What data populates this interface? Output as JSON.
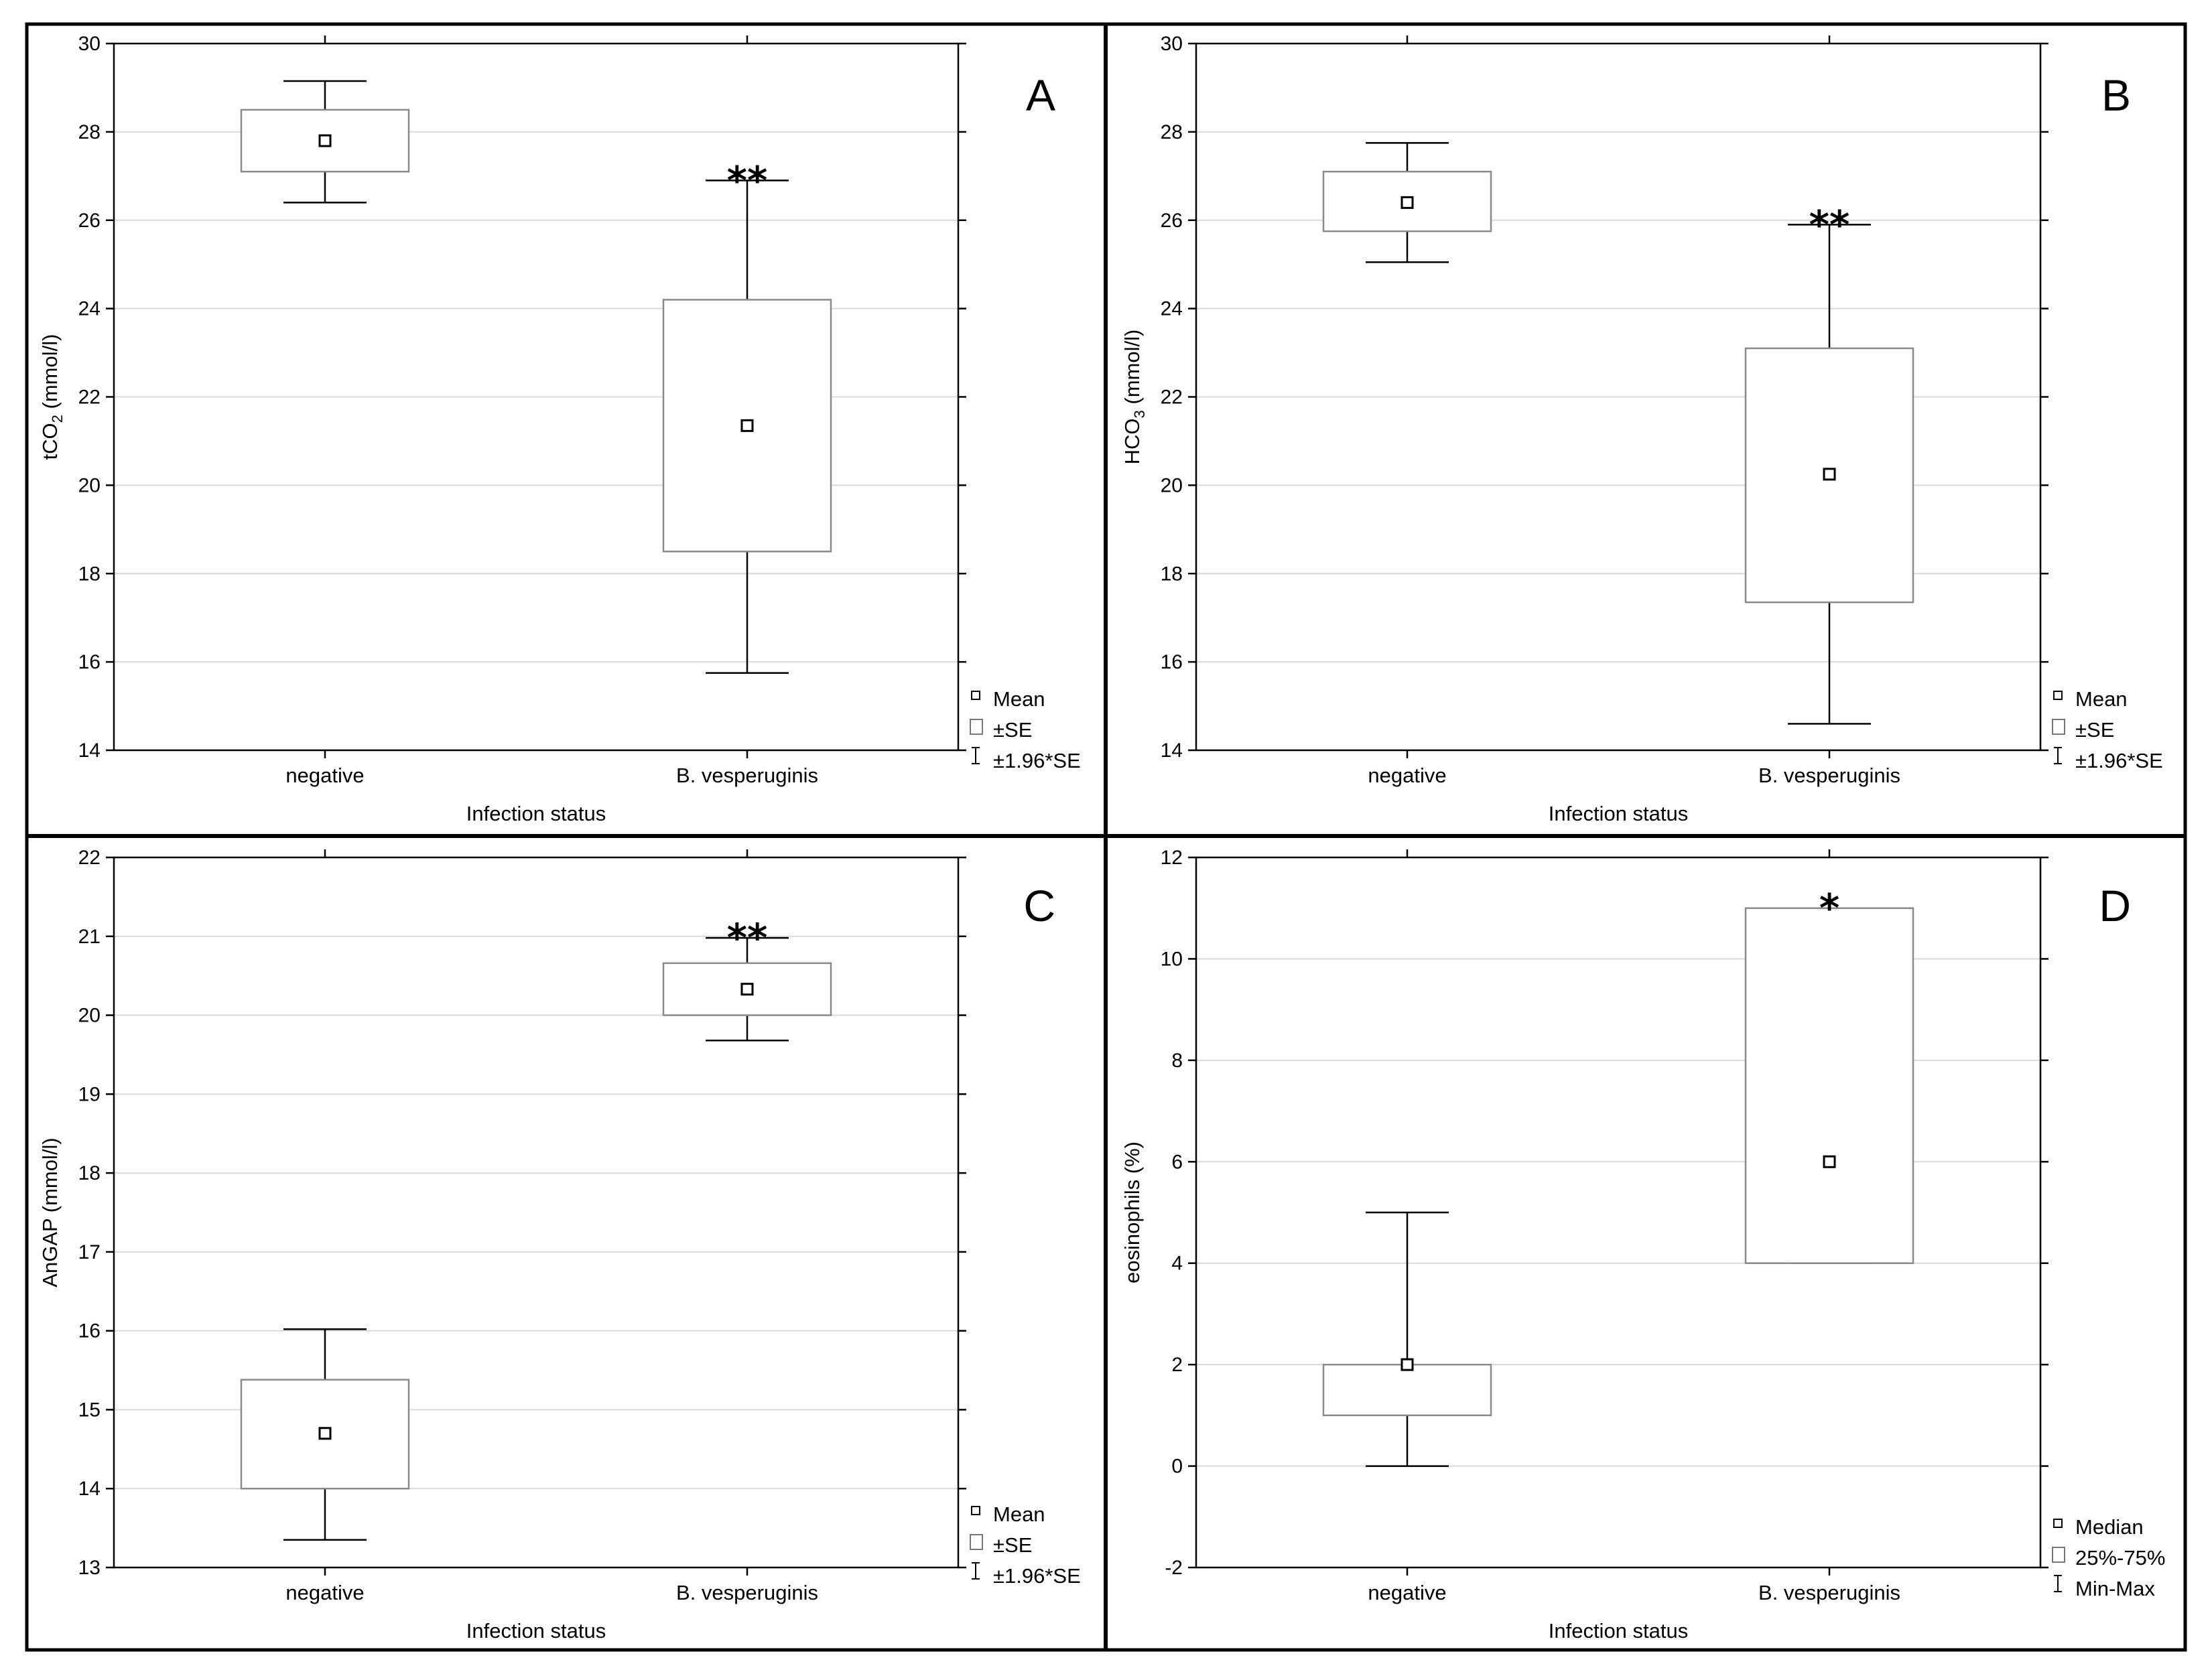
{
  "chart_data": [
    {
      "type": "box",
      "panel": "A",
      "ylabel": "tCO",
      "ylabel_sub": "2",
      "ylabel_unit": " (mmol/l)",
      "xlabel": "Infection status",
      "categories": [
        "negative",
        "B. vesperuginis"
      ],
      "ylim": [
        14,
        30
      ],
      "yticks": [
        14,
        16,
        18,
        20,
        22,
        24,
        26,
        28,
        30
      ],
      "series": [
        {
          "name": "negative",
          "center": 27.8,
          "box_low": 27.1,
          "box_high": 28.5,
          "whisker_low": 26.4,
          "whisker_high": 29.15,
          "significance": ""
        },
        {
          "name": "B. vesperuginis",
          "center": 21.35,
          "box_low": 18.5,
          "box_high": 24.2,
          "whisker_low": 15.75,
          "whisker_high": 26.9,
          "significance": "**"
        }
      ],
      "legend": [
        "Mean",
        "±SE",
        "±1.96*SE"
      ]
    },
    {
      "type": "box",
      "panel": "B",
      "ylabel": "HCO",
      "ylabel_sub": "3",
      "ylabel_unit": " (mmol/l)",
      "xlabel": "Infection status",
      "categories": [
        "negative",
        "B. vesperuginis"
      ],
      "ylim": [
        14,
        30
      ],
      "yticks": [
        14,
        16,
        18,
        20,
        22,
        24,
        26,
        28,
        30
      ],
      "series": [
        {
          "name": "negative",
          "center": 26.4,
          "box_low": 25.75,
          "box_high": 27.1,
          "whisker_low": 25.05,
          "whisker_high": 27.75,
          "significance": ""
        },
        {
          "name": "B. vesperuginis",
          "center": 20.25,
          "box_low": 17.35,
          "box_high": 23.1,
          "whisker_low": 14.6,
          "whisker_high": 25.9,
          "significance": "**"
        }
      ],
      "legend": [
        "Mean",
        "±SE",
        "±1.96*SE"
      ]
    },
    {
      "type": "box",
      "panel": "C",
      "ylabel": "AnGAP",
      "ylabel_sub": "",
      "ylabel_unit": " (mmol/l)",
      "xlabel": "Infection status",
      "categories": [
        "negative",
        "B. vesperuginis"
      ],
      "ylim": [
        13,
        22
      ],
      "yticks": [
        13,
        14,
        15,
        16,
        17,
        18,
        19,
        20,
        21,
        22
      ],
      "series": [
        {
          "name": "negative",
          "center": 14.7,
          "box_low": 14.0,
          "box_high": 15.38,
          "whisker_low": 13.35,
          "whisker_high": 16.02,
          "significance": ""
        },
        {
          "name": "B. vesperuginis",
          "center": 20.33,
          "box_low": 20.0,
          "box_high": 20.66,
          "whisker_low": 19.68,
          "whisker_high": 20.98,
          "significance": "**"
        }
      ],
      "legend": [
        "Mean",
        "±SE",
        "±1.96*SE"
      ]
    },
    {
      "type": "box",
      "panel": "D",
      "ylabel": "eosinophils",
      "ylabel_sub": "",
      "ylabel_unit": " (%)",
      "xlabel": "Infection status",
      "categories": [
        "negative",
        "B. vesperuginis"
      ],
      "ylim": [
        -2,
        12
      ],
      "yticks": [
        -2,
        0,
        2,
        4,
        6,
        8,
        10,
        12
      ],
      "series": [
        {
          "name": "negative",
          "center": 2,
          "box_low": 1,
          "box_high": 2,
          "whisker_low": 0,
          "whisker_high": 5,
          "significance": ""
        },
        {
          "name": "B. vesperuginis",
          "center": 6,
          "box_low": 4,
          "box_high": 11,
          "whisker_low": 4,
          "whisker_high": 11,
          "significance": "*"
        }
      ],
      "legend": [
        "Median",
        "25%-75%",
        "Min-Max"
      ]
    }
  ]
}
